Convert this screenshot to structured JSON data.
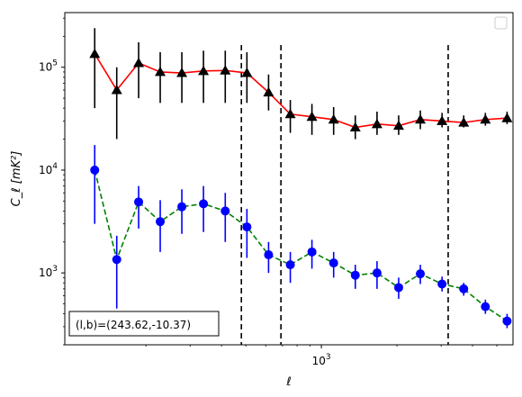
{
  "chart_data": {
    "type": "scatter",
    "xscale": "log",
    "yscale": "log",
    "xlim": [
      95,
      5800
    ],
    "ylim": [
      200,
      340000
    ],
    "xlabel": "ℓ",
    "ylabel": "C_ℓ  [mK²]",
    "xticks": [
      {
        "value": 1000,
        "base": "10",
        "exp": "3"
      }
    ],
    "yticks": [
      {
        "value": 1000,
        "base": "10",
        "exp": "3"
      },
      {
        "value": 10000,
        "base": "10",
        "exp": "4"
      },
      {
        "value": 100000,
        "base": "10",
        "exp": "5"
      }
    ],
    "vlines": [
      480,
      690,
      3200
    ],
    "legend_position": "upper right",
    "annotation": "(l,b)=(243.62,-10.37)",
    "series": [
      {
        "color": "#000000",
        "line_color": "#ff0000",
        "line_style": "solid",
        "marker": "triangle",
        "x": [
          125,
          153,
          187,
          228,
          278,
          339,
          414,
          505,
          616,
          752,
          917,
          1119,
          1365,
          1666,
          2032,
          2479,
          3025,
          3690,
          4502,
          5493
        ],
        "y": [
          135000,
          60000,
          110000,
          90000,
          88000,
          92000,
          93000,
          88000,
          57000,
          35000,
          33000,
          31000,
          26000,
          28000,
          27000,
          31000,
          30000,
          29000,
          31000,
          32000
        ],
        "yerr_low": [
          40000,
          20000,
          50000,
          45000,
          45000,
          45000,
          45000,
          45000,
          38000,
          23000,
          22000,
          22000,
          20000,
          22000,
          22000,
          25000,
          26000,
          26000,
          27000,
          28000
        ],
        "yerr_high": [
          240000,
          100000,
          175000,
          140000,
          140000,
          145000,
          145000,
          140000,
          85000,
          48000,
          44000,
          41000,
          34000,
          37000,
          34000,
          38000,
          36000,
          34000,
          36000,
          37000
        ]
      },
      {
        "color": "#0000ff",
        "line_color": "#008000",
        "line_style": "dashed",
        "marker": "circle",
        "x": [
          125,
          153,
          187,
          228,
          278,
          339,
          414,
          505,
          616,
          752,
          917,
          1119,
          1365,
          1666,
          2032,
          2479,
          3025,
          3690,
          4502,
          5493
        ],
        "y": [
          10000,
          1350,
          4900,
          3150,
          4400,
          4700,
          4000,
          2800,
          1500,
          1200,
          1600,
          1250,
          950,
          1000,
          720,
          980,
          780,
          700,
          470,
          340
        ],
        "yerr_low": [
          3000,
          450,
          2700,
          1600,
          2400,
          2500,
          2000,
          1400,
          1000,
          800,
          1100,
          900,
          700,
          700,
          560,
          780,
          660,
          600,
          400,
          290
        ],
        "yerr_high": [
          17500,
          2300,
          7000,
          5100,
          6500,
          7000,
          6000,
          4200,
          2000,
          1600,
          2100,
          1600,
          1200,
          1300,
          900,
          1200,
          920,
          800,
          550,
          400
        ]
      }
    ]
  }
}
